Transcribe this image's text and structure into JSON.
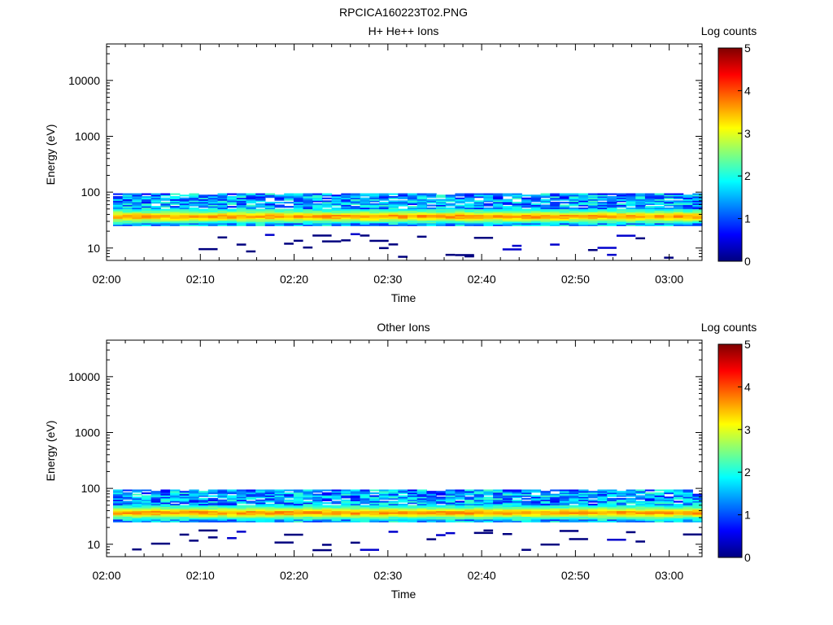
{
  "figure_title": "RPCICA160223T02.PNG",
  "colors": {
    "background": "#ffffff",
    "axis": "#000000",
    "colormap": [
      "#00007f",
      "#0000ff",
      "#007fff",
      "#00ffff",
      "#7fff7f",
      "#ffff00",
      "#ff7f00",
      "#ff0000",
      "#7f0000"
    ]
  },
  "chart_data": [
    {
      "type": "heatmap",
      "title": "H+ He++ Ions",
      "xlabel": "Time",
      "ylabel": "Energy (eV)",
      "x_ticks": [
        "02:00",
        "02:10",
        "02:20",
        "02:30",
        "02:40",
        "02:50",
        "03:00"
      ],
      "x_tick_minutes": [
        0,
        10,
        20,
        30,
        40,
        50,
        60
      ],
      "xlim_minutes": [
        0,
        63.5
      ],
      "y_scale": "log",
      "ylim": [
        6,
        45000
      ],
      "y_ticks": [
        "10",
        "100",
        "1000",
        "10000"
      ],
      "y_tick_values": [
        10,
        100,
        1000,
        10000
      ],
      "colorbar": {
        "label": "Log counts",
        "range": [
          0,
          5
        ],
        "ticks": [
          "0",
          "1",
          "2",
          "3",
          "4",
          "5"
        ]
      },
      "seed": 7
    },
    {
      "type": "heatmap",
      "title": "Other Ions",
      "xlabel": "Time",
      "ylabel": "Energy (eV)",
      "x_ticks": [
        "02:00",
        "02:10",
        "02:20",
        "02:30",
        "02:40",
        "02:50",
        "03:00"
      ],
      "x_tick_minutes": [
        0,
        10,
        20,
        30,
        40,
        50,
        60
      ],
      "xlim_minutes": [
        0,
        63.5
      ],
      "y_scale": "log",
      "ylim": [
        6,
        45000
      ],
      "y_ticks": [
        "10",
        "100",
        "1000",
        "10000"
      ],
      "y_tick_values": [
        10,
        100,
        1000,
        10000
      ],
      "colorbar": {
        "label": "Log counts",
        "range": [
          0,
          5
        ],
        "ticks": [
          "0",
          "1",
          "2",
          "3",
          "4",
          "5"
        ]
      },
      "seed": 19
    }
  ]
}
